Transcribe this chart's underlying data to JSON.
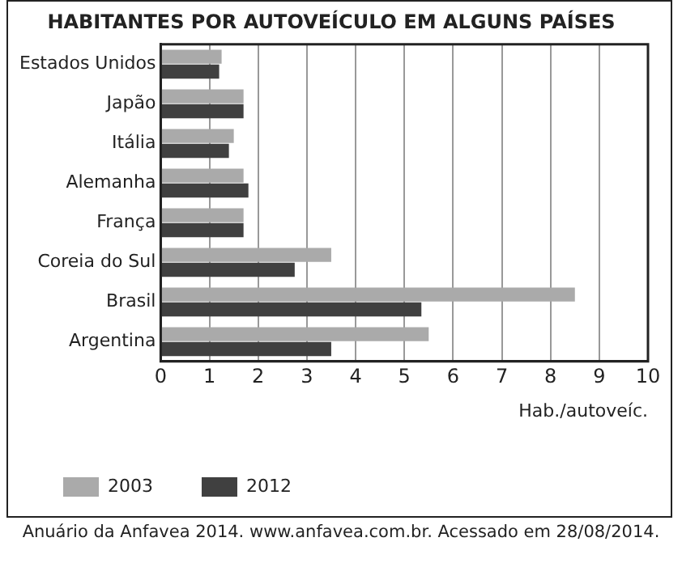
{
  "chart_data": {
    "type": "bar",
    "orientation": "horizontal",
    "title": "HABITANTES POR AUTOVEÍCULO EM ALGUNS PAÍSES",
    "xlabel": "Hab./autoveíc.",
    "categories": [
      "Estados Unidos",
      "Japão",
      "Itália",
      "Alemanha",
      "França",
      "Coreia do Sul",
      "Brasil",
      "Argentina"
    ],
    "series": [
      {
        "name": "2003",
        "color": "#aaaaaa",
        "values": [
          1.25,
          1.7,
          1.5,
          1.7,
          1.7,
          3.5,
          8.5,
          5.5
        ]
      },
      {
        "name": "2012",
        "color": "#404040",
        "values": [
          1.2,
          1.7,
          1.4,
          1.8,
          1.7,
          2.75,
          5.35,
          3.5
        ]
      }
    ],
    "xlim": [
      0,
      10
    ],
    "xticks": [
      0,
      1,
      2,
      3,
      4,
      5,
      6,
      7,
      8,
      9,
      10
    ],
    "grid": "x",
    "legend": "bottom left",
    "annotations": [
      "Anuário da Anfavea 2014. www.anfavea.com.br. Acessado em 28/08/2014."
    ]
  }
}
